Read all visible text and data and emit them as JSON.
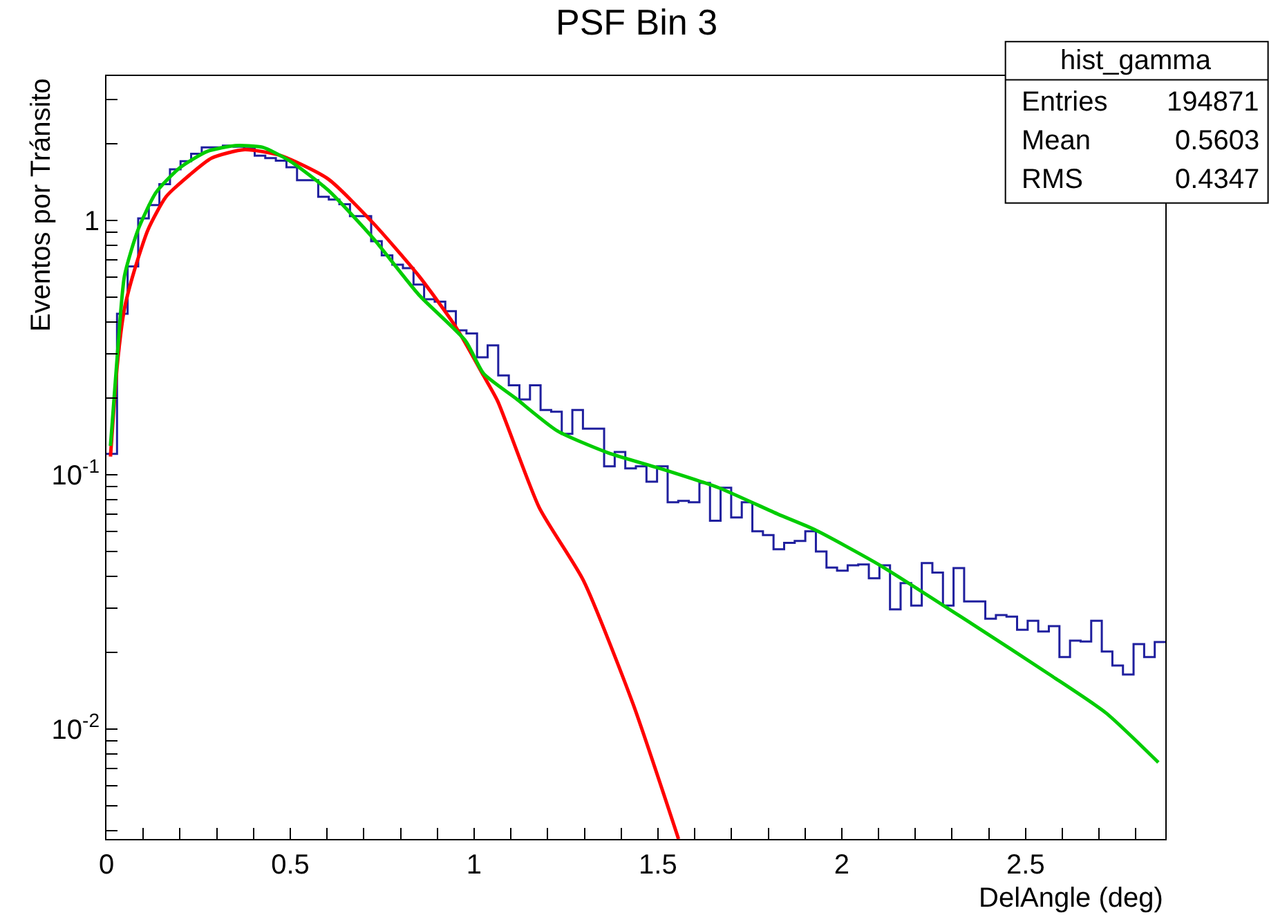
{
  "chart_data": {
    "type": "histogram",
    "title": "PSF Bin 3",
    "xlabel": "DelAngle (deg)",
    "ylabel": "Eventos por Tránsito",
    "bins": [
      0,
      0.0288,
      0.0576,
      0.0864,
      0.1152,
      0.144,
      0.1728,
      0.2016,
      0.2304,
      0.2592,
      0.288,
      0.3168,
      0.3456,
      0.3744,
      0.4032,
      0.432,
      0.4608,
      0.4896,
      0.5184,
      0.5472,
      0.576,
      0.6048,
      0.6336,
      0.6624,
      0.6912,
      0.72,
      0.7488,
      0.7776,
      0.8064,
      0.8352,
      0.864,
      0.8928,
      0.9216,
      0.9504,
      0.9792,
      1.008,
      1.0368,
      1.0656,
      1.0944,
      1.1232,
      1.152,
      1.1808,
      1.2096,
      1.2384,
      1.2672,
      1.296,
      1.3248,
      1.3536,
      1.3824,
      1.4112,
      1.44,
      1.4688,
      1.4976,
      1.5264,
      1.5552,
      1.584,
      1.6128,
      1.6416,
      1.6704,
      1.6992,
      1.728,
      1.7568,
      1.7856,
      1.8144,
      1.8432,
      1.872,
      1.9008,
      1.9296,
      1.9584,
      1.9872,
      2.016,
      2.0448,
      2.0736,
      2.1024,
      2.1312,
      2.16,
      2.1888,
      2.2176,
      2.2464,
      2.2752,
      2.304,
      2.3328,
      2.3616,
      2.3904,
      2.4192,
      2.448,
      2.4768,
      2.5056,
      2.5344,
      2.5632,
      2.592,
      2.6208,
      2.6496,
      2.6784,
      2.7072,
      2.736,
      2.7648,
      2.7936,
      2.8224,
      2.8512,
      2.88
    ],
    "series": [
      {
        "color": "#1f1f9e",
        "values": [
          0.121,
          0.43,
          0.66,
          1.02,
          1.15,
          1.39,
          1.59,
          1.71,
          1.83,
          1.94,
          1.94,
          1.97,
          1.95,
          1.92,
          1.8,
          1.76,
          1.72,
          1.62,
          1.44,
          1.44,
          1.24,
          1.21,
          1.16,
          1.04,
          1.04,
          0.83,
          0.73,
          0.67,
          0.65,
          0.56,
          0.49,
          0.48,
          0.44,
          0.37,
          0.36,
          0.29,
          0.323,
          0.246,
          0.225,
          0.198,
          0.225,
          0.18,
          0.177,
          0.145,
          0.18,
          0.152,
          0.152,
          0.108,
          0.123,
          0.106,
          0.108,
          0.094,
          0.108,
          0.078,
          0.079,
          0.078,
          0.093,
          0.066,
          0.089,
          0.068,
          0.078,
          0.06,
          0.058,
          0.051,
          0.054,
          0.055,
          0.06,
          0.05,
          0.0432,
          0.042,
          0.0441,
          0.0444,
          0.0392,
          0.0441,
          0.0296,
          0.0375,
          0.0306,
          0.045,
          0.0413,
          0.0306,
          0.043,
          0.0318,
          0.0318,
          0.0272,
          0.0281,
          0.0277,
          0.0246,
          0.0267,
          0.0242,
          0.0254,
          0.0192,
          0.0223,
          0.0221,
          0.0267,
          0.0202,
          0.0178,
          0.0164,
          0.0216,
          0.0192,
          0.022
        ]
      },
      {
        "type": "line",
        "color": "#ff0000",
        "x": [
          0.011,
          0.03,
          0.049,
          0.075,
          0.113,
          0.162,
          0.226,
          0.286,
          0.376,
          0.474,
          0.602,
          0.726,
          0.85,
          0.951,
          1.026,
          1.064,
          1.177,
          1.297,
          1.432,
          1.556
        ],
        "values": [
          0.118,
          0.275,
          0.45,
          0.63,
          0.92,
          1.24,
          1.51,
          1.76,
          1.9,
          1.8,
          1.46,
          0.975,
          0.605,
          0.38,
          0.245,
          0.195,
          0.0744,
          0.0385,
          0.0126,
          0.0037
        ]
      },
      {
        "type": "line",
        "color": "#00cc00",
        "x": [
          0.011,
          0.03,
          0.049,
          0.086,
          0.135,
          0.199,
          0.274,
          0.35,
          0.425,
          0.5,
          0.602,
          0.726,
          0.85,
          0.977,
          1.026,
          1.113,
          1.226,
          1.365,
          1.515,
          1.665,
          1.827,
          1.925,
          2.105,
          2.353,
          2.568,
          2.718,
          2.861
        ],
        "values": [
          0.13,
          0.3,
          0.605,
          0.92,
          1.29,
          1.61,
          1.87,
          1.97,
          1.94,
          1.71,
          1.32,
          0.85,
          0.51,
          0.336,
          0.25,
          0.2,
          0.149,
          0.122,
          0.105,
          0.089,
          0.07,
          0.061,
          0.044,
          0.026,
          0.0163,
          0.0116,
          0.0074
        ]
      }
    ],
    "xlim": [
      0,
      2.88
    ],
    "ylim": [
      0.0037,
      3.7
    ],
    "log": "y",
    "marker": "none",
    "line_style": "solid",
    "xticks": [
      0,
      {
        "value": 0.1,
        "label": null
      },
      {
        "value": 0.2,
        "label": null
      },
      {
        "value": 0.3,
        "label": null
      },
      {
        "value": 0.4,
        "label": null
      },
      0.5,
      {
        "value": 0.6,
        "label": null
      },
      {
        "value": 0.7,
        "label": null
      },
      {
        "value": 0.8,
        "label": null
      },
      {
        "value": 0.9,
        "label": null
      },
      1,
      {
        "value": 1.1,
        "label": null
      },
      {
        "value": 1.2,
        "label": null
      },
      {
        "value": 1.3,
        "label": null
      },
      {
        "value": 1.4,
        "label": null
      },
      1.5,
      {
        "value": 1.6,
        "label": null
      },
      {
        "value": 1.7,
        "label": null
      },
      {
        "value": 1.8,
        "label": null
      },
      {
        "value": 1.9,
        "label": null
      },
      2,
      {
        "value": 2.1,
        "label": null
      },
      {
        "value": 2.2,
        "label": null
      },
      {
        "value": 2.3,
        "label": null
      },
      {
        "value": 2.4,
        "label": null
      },
      2.5,
      {
        "value": 2.6,
        "label": null
      },
      {
        "value": 2.7,
        "label": null
      },
      {
        "value": 2.8,
        "label": null
      }
    ],
    "yticks": [
      {
        "value": 0.004,
        "label": null
      },
      {
        "value": 0.005,
        "label": null
      },
      {
        "value": 0.006,
        "label": null
      },
      {
        "value": 0.007,
        "label": null
      },
      {
        "value": 0.008,
        "label": null
      },
      {
        "value": 0.009,
        "label": null
      },
      {
        "value": 0.01,
        "label": "10$^{-2}$"
      },
      {
        "value": 0.02,
        "label": null
      },
      {
        "value": 0.03,
        "label": null
      },
      {
        "value": 0.04,
        "label": null
      },
      {
        "value": 0.05,
        "label": null
      },
      {
        "value": 0.06,
        "label": null
      },
      {
        "value": 0.07,
        "label": null
      },
      {
        "value": 0.08,
        "label": null
      },
      {
        "value": 0.09,
        "label": null
      },
      {
        "value": 0.1,
        "label": "10$^{-1}$"
      },
      {
        "value": 0.2,
        "label": null
      },
      {
        "value": 0.3,
        "label": null
      },
      {
        "value": 0.4,
        "label": null
      },
      {
        "value": 0.5,
        "label": null
      },
      {
        "value": 0.6,
        "label": null
      },
      {
        "value": 0.7,
        "label": null
      },
      {
        "value": 0.8,
        "label": null
      },
      {
        "value": 0.9,
        "label": null
      },
      1,
      {
        "value": 2,
        "label": null
      },
      {
        "value": 3,
        "label": null
      }
    ],
    "annotations": [
      "hist_gamma",
      "Entries",
      "194871",
      "Mean",
      "0.5603",
      "RMS",
      "0.4347"
    ]
  }
}
